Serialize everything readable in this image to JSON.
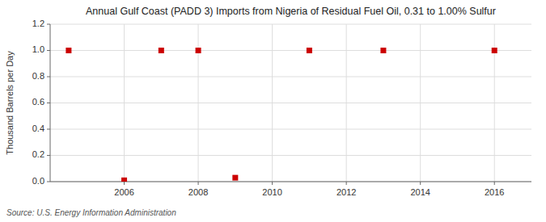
{
  "chart_data": {
    "type": "scatter",
    "title": "Annual Gulf Coast (PADD 3) Imports from Nigeria of Residual Fuel Oil, 0.31 to 1.00% Sulfur",
    "y_label": "Thousand Barrels per Day",
    "source": "Source: U.S. Energy Information Administration",
    "x": [
      2004.5,
      2006.0,
      2007.0,
      2008.0,
      2009.0,
      2011.0,
      2013.0,
      2016.0
    ],
    "values": [
      1.0,
      0.01,
      1.0,
      1.0,
      0.03,
      1.0,
      1.0,
      1.0
    ],
    "xlim": [
      2004.0,
      2017.0
    ],
    "ylim": [
      0.0,
      1.2
    ],
    "xticks": [
      2006,
      2008,
      2010,
      2012,
      2014,
      2016
    ],
    "yticks": [
      {
        "value": 0.0,
        "label": "0.0"
      },
      0.2,
      0.4,
      0.6,
      0.8,
      {
        "value": 1.0,
        "label": "1.0"
      },
      1.2
    ],
    "color": "#cc0000",
    "marker": "square",
    "grid": true
  }
}
